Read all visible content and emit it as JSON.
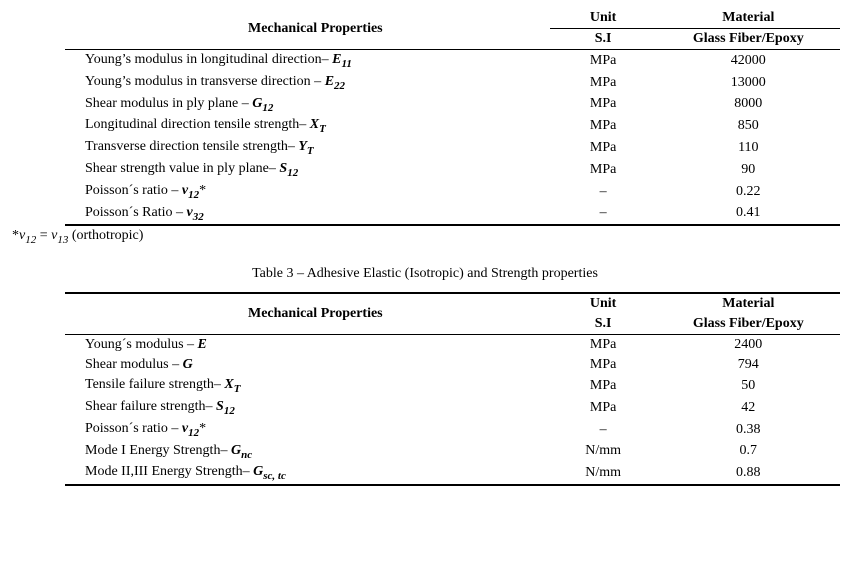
{
  "table1": {
    "headers": {
      "prop": "Mechanical Properties",
      "unit1": "Unit",
      "unit2": "S.I",
      "mat1": "Material",
      "mat2": "Glass Fiber/Epoxy"
    },
    "rows": [
      {
        "label": "Young’s modulus in longitudinal direction– ",
        "sym_main": "E",
        "sym_sub": "11",
        "unit": "MPa",
        "val": "42000"
      },
      {
        "label": "Young’s modulus in transverse direction – ",
        "sym_main": "E",
        "sym_sub": "22",
        "unit": "MPa",
        "val": "13000"
      },
      {
        "label": "Shear modulus in ply plane – ",
        "sym_main": "G",
        "sym_sub": "12",
        "unit": "MPa",
        "val": "8000"
      },
      {
        "label": "Longitudinal direction tensile strength– ",
        "sym_main": "X",
        "sym_sub": "T",
        "unit": "MPa",
        "val": "850"
      },
      {
        "label": "Transverse direction tensile strength– ",
        "sym_main": "Y",
        "sym_sub": "T",
        "unit": "MPa",
        "val": "110"
      },
      {
        "label": "Shear strength value in ply plane– ",
        "sym_main": "S",
        "sym_sub": "12",
        "unit": "MPa",
        "val": "90"
      },
      {
        "label": "Poisson´s  ratio – ",
        "sym_main": "ν",
        "sym_sub": "12",
        "suffix": "*",
        "unit": "–",
        "val": "0.22"
      },
      {
        "label": "Poisson´s Ratio – ",
        "sym_main": "ν",
        "sym_sub": "32",
        "unit": "–",
        "val": "0.41"
      }
    ]
  },
  "note": {
    "pre": "*",
    "sym1_main": "ν",
    "sym1_sub": "12",
    "eq": " = ",
    "sym2_main": "ν",
    "sym2_sub": "13",
    "after": " (orthotropic)"
  },
  "caption": {
    "text": "Table 3 – Adhesive Elastic (Isotropic) and Strength properties"
  },
  "table2": {
    "headers": {
      "prop": "Mechanical Properties",
      "unit1": "Unit",
      "unit2": "S.I",
      "mat1": "Material",
      "mat2": "Glass Fiber/Epoxy"
    },
    "rows": [
      {
        "label": "Young´s modulus – ",
        "sym_main": "E",
        "sym_sub": "",
        "unit": "MPa",
        "val": "2400"
      },
      {
        "label": "Shear modulus – ",
        "sym_main": "G",
        "sym_sub": "",
        "unit": "MPa",
        "val": "794"
      },
      {
        "label": "Tensile failure strength– ",
        "sym_main": "X",
        "sym_sub": "T",
        "unit": "MPa",
        "val": "50"
      },
      {
        "label": "Shear failure strength– ",
        "sym_main": "S",
        "sym_sub": "12",
        "unit": "MPa",
        "val": "42"
      },
      {
        "label": "Poisson´s ratio – ",
        "sym_main": "ν",
        "sym_sub": "12",
        "suffix": "*",
        "unit": "–",
        "val": "0.38"
      },
      {
        "label": "Mode I Energy Strength– ",
        "sym_main": "G",
        "sym_sub": "nc",
        "unit": "N/mm",
        "val": "0.7"
      },
      {
        "label": "Mode II,III Energy Strength– ",
        "sym_main": "G",
        "sym_sub": "sc, tc",
        "unit": "N/mm",
        "val": "0.88"
      }
    ]
  }
}
